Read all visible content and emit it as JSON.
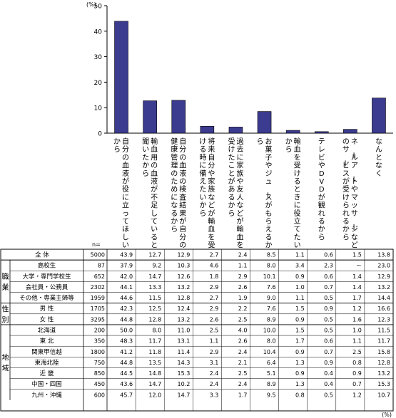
{
  "chart_data": {
    "type": "bar",
    "unit": "(%)",
    "yticks": [
      0,
      10,
      20,
      30,
      40,
      50
    ],
    "ylim": [
      0,
      50
    ],
    "grid": false,
    "color": "#3b3b8f",
    "categories": [
      "自分の血液が役に立ってほしいから",
      "輸血用の血液が不足していると聞いたから",
      "自分の血液の検査結果が自分の健康管理のためになるから",
      "将来自分や家族などが輸血を受ける時に備えたいから",
      "過去に家族や友人などが輸血を受けたことがあるから",
      "お菓子やジュースがもらえるから",
      "輸血を受けるときに役立てたいから",
      "テレビやDVDが観れるから",
      "ネールアートやマッサージなどのサービスが受けられるから",
      "なんとなく"
    ],
    "values": [
      43.9,
      12.7,
      12.9,
      2.7,
      2.4,
      8.5,
      1.1,
      0.6,
      1.5,
      13.8
    ]
  },
  "table": {
    "n_header": "n=",
    "unit": "(%)",
    "groups": [
      {
        "label": "",
        "rows": [
          {
            "label": "全 体",
            "n": "5000",
            "values": [
              "43.9",
              "12.7",
              "12.9",
              "2.7",
              "2.4",
              "8.5",
              "1.1",
              "0.6",
              "1.5",
              "13.8"
            ]
          }
        ]
      },
      {
        "label": "職業",
        "rows": [
          {
            "label": "高校生",
            "n": "87",
            "values": [
              "37.9",
              "9.2",
              "10.3",
              "4.6",
              "1.1",
              "8.0",
              "3.4",
              "2.3",
              "－",
              "23.0"
            ]
          },
          {
            "label": "大学・専門学校生",
            "n": "652",
            "values": [
              "42.0",
              "14.7",
              "12.6",
              "1.8",
              "2.9",
              "10.1",
              "0.9",
              "0.6",
              "1.4",
              "12.9"
            ]
          },
          {
            "label": "会社員・公務員",
            "n": "2302",
            "values": [
              "44.1",
              "13.3",
              "13.2",
              "2.9",
              "2.6",
              "7.6",
              "1.0",
              "0.7",
              "1.4",
              "13.2"
            ]
          },
          {
            "label": "その他・専業主婦等",
            "n": "1959",
            "values": [
              "44.6",
              "11.5",
              "12.8",
              "2.7",
              "1.9",
              "9.0",
              "1.1",
              "0.5",
              "1.7",
              "14.4"
            ]
          }
        ]
      },
      {
        "label": "性別",
        "rows": [
          {
            "label": "男 性",
            "n": "1705",
            "values": [
              "42.3",
              "12.5",
              "12.4",
              "2.9",
              "2.2",
              "7.6",
              "1.5",
              "0.9",
              "1.2",
              "16.6"
            ]
          },
          {
            "label": "女 性",
            "n": "3295",
            "values": [
              "44.8",
              "12.8",
              "13.2",
              "2.6",
              "2.5",
              "8.9",
              "0.9",
              "0.5",
              "1.6",
              "12.3"
            ]
          }
        ]
      },
      {
        "label": "地域",
        "rows": [
          {
            "label": "北海道",
            "n": "200",
            "values": [
              "50.0",
              "8.0",
              "11.0",
              "2.5",
              "4.0",
              "10.0",
              "1.5",
              "0.5",
              "1.0",
              "11.5"
            ]
          },
          {
            "label": "東 北",
            "n": "350",
            "values": [
              "48.3",
              "11.7",
              "13.1",
              "1.1",
              "2.6",
              "8.0",
              "1.7",
              "0.6",
              "1.1",
              "11.7"
            ]
          },
          {
            "label": "関東甲信越",
            "n": "1800",
            "values": [
              "41.2",
              "11.8",
              "11.4",
              "2.9",
              "2.4",
              "10.4",
              "0.9",
              "0.7",
              "2.5",
              "15.8"
            ]
          },
          {
            "label": "東海北陸",
            "n": "750",
            "values": [
              "44.8",
              "13.5",
              "14.3",
              "3.1",
              "2.1",
              "6.4",
              "1.3",
              "0.9",
              "0.8",
              "12.8"
            ]
          },
          {
            "label": "近 畿",
            "n": "850",
            "values": [
              "44.5",
              "14.8",
              "15.3",
              "2.4",
              "2.5",
              "5.1",
              "0.9",
              "0.4",
              "0.9",
              "13.2"
            ]
          },
          {
            "label": "中国・四国",
            "n": "450",
            "values": [
              "43.6",
              "14.7",
              "10.2",
              "2.4",
              "2.4",
              "8.9",
              "1.3",
              "0.4",
              "0.7",
              "15.3"
            ]
          },
          {
            "label": "九州・沖縄",
            "n": "600",
            "values": [
              "45.7",
              "12.0",
              "14.7",
              "3.3",
              "1.7",
              "9.5",
              "0.8",
              "0.5",
              "1.2",
              "10.7"
            ]
          }
        ]
      }
    ]
  }
}
